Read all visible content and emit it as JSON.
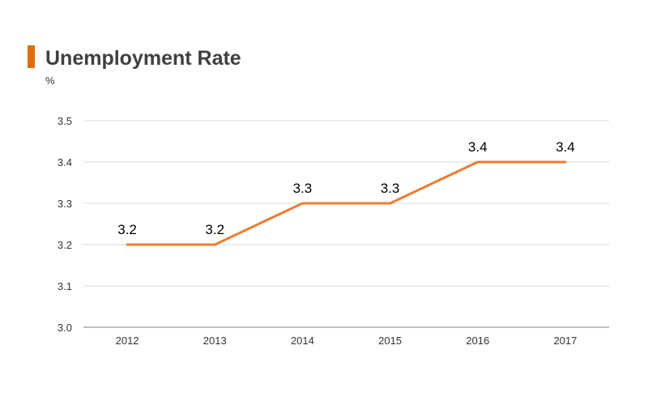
{
  "title": "Unemployment Rate",
  "accent_color": "#e36c0a",
  "chart_data": {
    "type": "line",
    "title": "Unemployment Rate",
    "ylabel": "%",
    "xlabel": "",
    "categories": [
      "2012",
      "2013",
      "2014",
      "2015",
      "2016",
      "2017"
    ],
    "values": [
      3.2,
      3.2,
      3.3,
      3.3,
      3.4,
      3.4
    ],
    "data_labels": [
      "3.2",
      "3.2",
      "3.3",
      "3.3",
      "3.4",
      "3.4"
    ],
    "ylim": [
      3.0,
      3.5
    ],
    "yticks": [
      3.0,
      3.1,
      3.2,
      3.3,
      3.4,
      3.5
    ],
    "ytick_labels": [
      "3.0",
      "3.1",
      "3.2",
      "3.3",
      "3.4",
      "3.5"
    ],
    "grid": true,
    "legend": "none",
    "line_color": "#ed7d31",
    "grid_color": "#d9d9d9",
    "axis_color": "#808080"
  }
}
